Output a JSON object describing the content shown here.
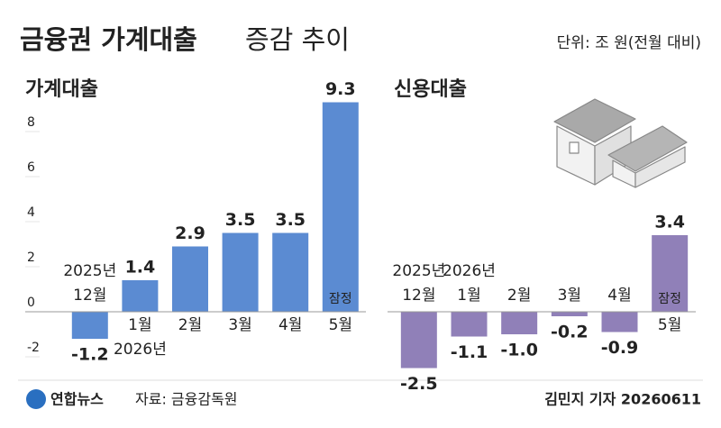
{
  "header": {
    "title_bold": "금융권 가계대출",
    "title_light": "증감 추이",
    "unit": "단위: 조 원(전월 대비)"
  },
  "footer": {
    "logo": "연합뉴스",
    "source": "자료: 금융감독원",
    "credit": "김민지 기자 20260611"
  },
  "chart_data": [
    {
      "type": "bar",
      "title": "가계대출",
      "categories": [
        [
          "2025년",
          "12월"
        ],
        [
          "1월",
          "2026년"
        ],
        [
          "2월"
        ],
        [
          "3월"
        ],
        [
          "4월"
        ],
        [
          "5월"
        ]
      ],
      "values": [
        -1.2,
        1.4,
        2.9,
        3.5,
        3.5,
        9.3
      ],
      "color": "#5b8bd2",
      "label_color": "#4a7cc6",
      "note": "잠정",
      "ylim": [
        -2.8,
        9.6
      ],
      "yticks": [
        -2,
        0,
        2,
        4,
        6,
        8
      ]
    },
    {
      "type": "bar",
      "title": "신용대출",
      "categories": [
        [
          "2025년",
          "12월"
        ],
        [
          "2026년",
          "1월"
        ],
        [
          "2월"
        ],
        [
          "3월"
        ],
        [
          "4월"
        ],
        [
          "5월"
        ]
      ],
      "values": [
        -2.5,
        -1.1,
        -1.0,
        -0.2,
        -0.9,
        3.4
      ],
      "value_labels": [
        "-2.5",
        "-1.1",
        "-1.0",
        "-0.2",
        "-0.9",
        "3.4"
      ],
      "color": "#9080b8",
      "label_color": "#7d6aa8",
      "note": "잠정",
      "ylim": [
        -2.8,
        9.6
      ]
    }
  ]
}
